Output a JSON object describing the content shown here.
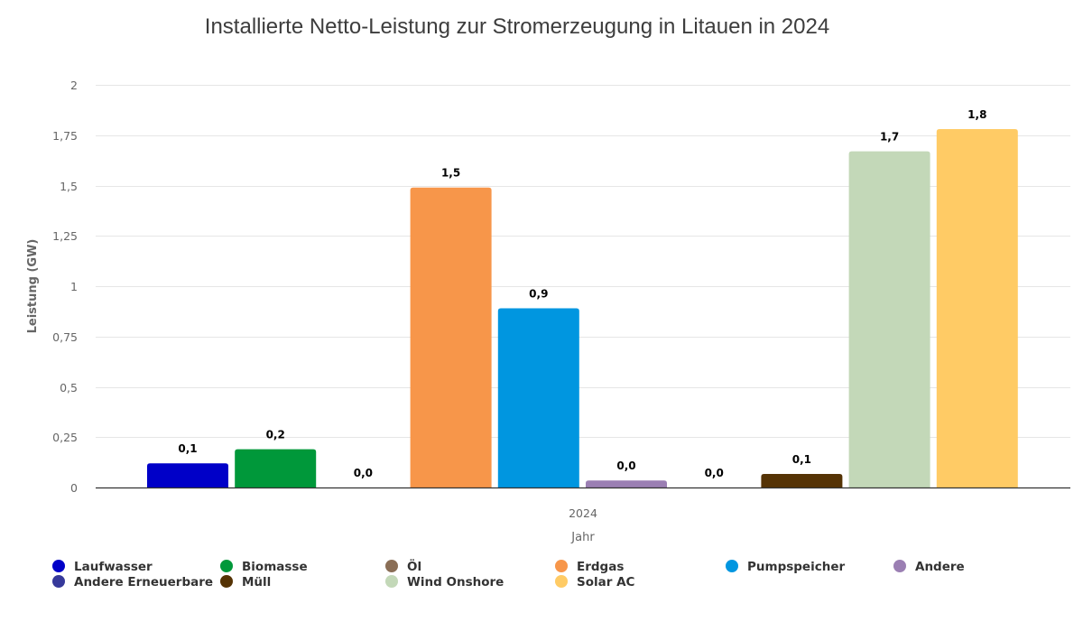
{
  "chart_data": {
    "type": "bar",
    "title": "Installierte Netto-Leistung zur Stromerzeugung in Litauen in 2024",
    "xlabel": "Jahr",
    "ylabel": "Leistung (GW)",
    "categories": [
      "2024"
    ],
    "ylim": [
      0,
      2
    ],
    "yticks": [
      0,
      0.25,
      0.5,
      0.75,
      1,
      1.25,
      1.5,
      1.75,
      2
    ],
    "ytick_labels": [
      "0",
      "0,25",
      "0,5",
      "0,75",
      "1",
      "1,25",
      "1,5",
      "1,75",
      "2"
    ],
    "grid": true,
    "legend_position": "bottom",
    "series": [
      {
        "name": "Laufwasser",
        "value": 0.12,
        "label": "0,1",
        "color": "#0000c8"
      },
      {
        "name": "Biomasse",
        "value": 0.19,
        "label": "0,2",
        "color": "#00983a"
      },
      {
        "name": "Öl",
        "value": 0.0,
        "label": "0,0",
        "color": "#8a6e56"
      },
      {
        "name": "Erdgas",
        "value": 1.49,
        "label": "1,5",
        "color": "#f7964a"
      },
      {
        "name": "Pumpspeicher",
        "value": 0.89,
        "label": "0,9",
        "color": "#0096e0"
      },
      {
        "name": "Andere",
        "value": 0.035,
        "label": "0,0",
        "color": "#9b7fb3"
      },
      {
        "name": "Andere Erneuerbare",
        "value": 0.0,
        "label": "0,0",
        "color": "#36399a"
      },
      {
        "name": "Müll",
        "value": 0.067,
        "label": "0,1",
        "color": "#553305"
      },
      {
        "name": "Wind Onshore",
        "value": 1.67,
        "label": "1,7",
        "color": "#c3d8b8"
      },
      {
        "name": "Solar AC",
        "value": 1.78,
        "label": "1,8",
        "color": "#ffcb65"
      }
    ],
    "legend_order": [
      0,
      1,
      2,
      3,
      4,
      5,
      6,
      7,
      8,
      9
    ]
  }
}
